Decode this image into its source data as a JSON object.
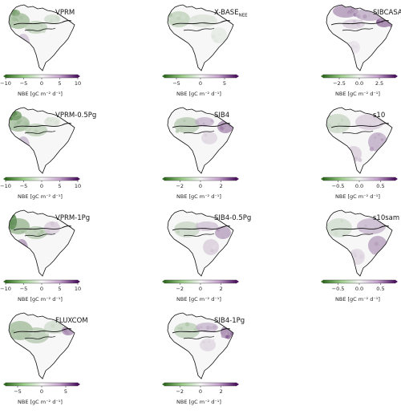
{
  "colors": {
    "negative": "#2e6b1e",
    "neutral": "#f7f7f7",
    "positive": "#4b0f5e",
    "coast": "#111111"
  },
  "chart_data": [
    {
      "type": "heatmap",
      "title": "VPRM",
      "colorbar_label": "NBE [gC m⁻² d⁻¹]",
      "colorbar_ticks": [
        "−10",
        "−5",
        "0",
        "5",
        "10"
      ],
      "colorbar_range": [
        -10,
        10
      ]
    },
    {
      "type": "heatmap",
      "title": "X-BASE",
      "title_sub": "NEE",
      "colorbar_label": "NBE [gC m⁻² d⁻¹]",
      "colorbar_ticks": [
        "−5",
        "0",
        "5"
      ],
      "colorbar_range": [
        -7.5,
        7.5
      ]
    },
    {
      "type": "heatmap",
      "title": "SIBCASA",
      "colorbar_label": "NBE [gC m⁻² d⁻¹]",
      "colorbar_ticks": [
        "−2.5",
        "0.0",
        "2.5"
      ],
      "colorbar_range": [
        -4.5,
        4.5
      ]
    },
    {
      "type": "heatmap",
      "title": "VPRM-0.5Pg",
      "colorbar_label": "NBE [gC m⁻² d⁻¹]",
      "colorbar_ticks": [
        "−10",
        "−5",
        "0",
        "5",
        "10"
      ],
      "colorbar_range": [
        -10,
        10
      ]
    },
    {
      "type": "heatmap",
      "title": "SIB4",
      "colorbar_label": "NBE [gC m⁻² d⁻¹]",
      "colorbar_ticks": [
        "−2",
        "0",
        "2"
      ],
      "colorbar_range": [
        -3.5,
        3.5
      ]
    },
    {
      "type": "heatmap",
      "title": "s10",
      "colorbar_label": "NBE [gC m⁻² d⁻¹]",
      "colorbar_ticks": [
        "−0.5",
        "0.0",
        "0.5"
      ],
      "colorbar_range": [
        -0.85,
        0.85
      ]
    },
    {
      "type": "heatmap",
      "title": "VPRM-1Pg",
      "colorbar_label": "NBE [gC m⁻² d⁻¹]",
      "colorbar_ticks": [
        "−10",
        "−5",
        "0",
        "5",
        "10"
      ],
      "colorbar_range": [
        -10,
        10
      ]
    },
    {
      "type": "heatmap",
      "title": "SIB4-0.5Pg",
      "colorbar_label": "NBE [gC m⁻² d⁻¹]",
      "colorbar_ticks": [
        "−2",
        "0",
        "2"
      ],
      "colorbar_range": [
        -3.5,
        3.5
      ]
    },
    {
      "type": "heatmap",
      "title": "s10sam",
      "colorbar_label": "NBE [gC m⁻² d⁻¹]",
      "colorbar_ticks": [
        "−0.5",
        "0.0",
        "0.5"
      ],
      "colorbar_range": [
        -0.85,
        0.85
      ]
    },
    {
      "type": "heatmap",
      "title": "FLUXCOM",
      "colorbar_label": "NBE [gC m⁻² d⁻¹]",
      "colorbar_ticks": [
        "−5",
        "0",
        "5"
      ],
      "colorbar_range": [
        -7.5,
        7.5
      ]
    },
    {
      "type": "heatmap",
      "title": "SIB4-1Pg",
      "colorbar_label": "NBE [gC m⁻² d⁻¹]",
      "colorbar_ticks": [
        "−2",
        "0",
        "2"
      ],
      "colorbar_range": [
        -3.5,
        3.5
      ]
    }
  ]
}
